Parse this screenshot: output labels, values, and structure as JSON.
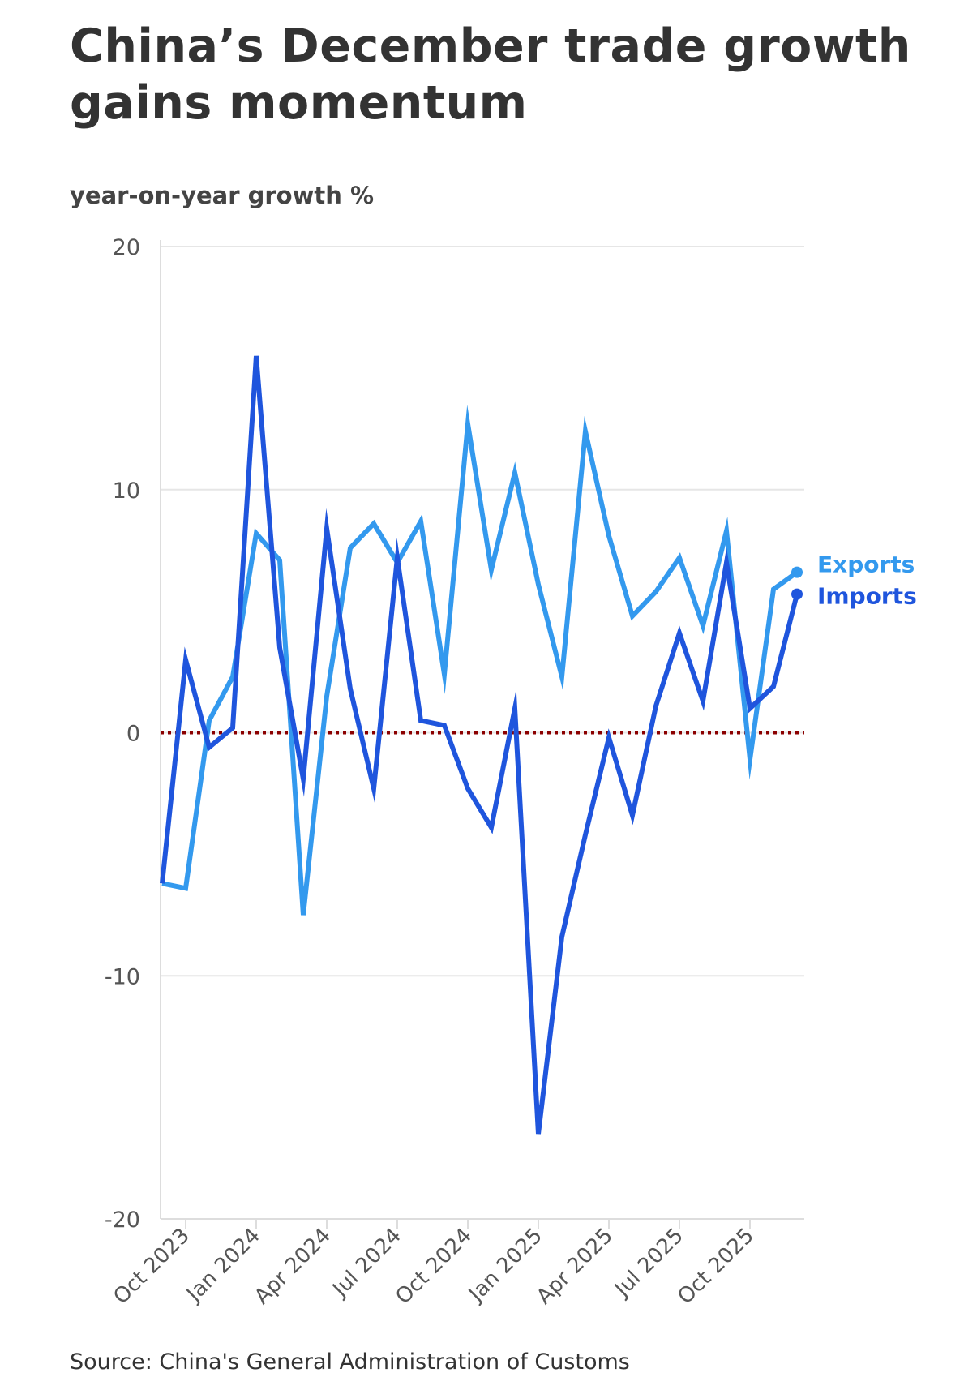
{
  "title": "China’s December trade growth gains momentum",
  "ylabel": "year-on-year growth %",
  "source": "Source: China's General Administration of Customs",
  "colors": {
    "exports": "#3399ee",
    "imports": "#1f55dd",
    "zero_line": "#8b0000",
    "grid": "#e6e6e6",
    "axis": "#dddddd",
    "tick_text": "#555555"
  },
  "chart_data": {
    "type": "line",
    "ylabel": "year-on-year growth %",
    "ylim": [
      -20,
      20
    ],
    "y_ticks": [
      20,
      10,
      0,
      -10,
      -20
    ],
    "x_tick_labels": [
      "Oct 2023",
      "Jan 2024",
      "Apr 2024",
      "Jul 2024",
      "Oct 2024",
      "Jan 2025",
      "Apr 2025",
      "Jul 2025",
      "Oct 2025"
    ],
    "x": [
      "Sep 2023",
      "Oct 2023",
      "Nov 2023",
      "Dec 2023",
      "Jan 2024",
      "Feb 2024",
      "Mar 2024",
      "Apr 2024",
      "May 2024",
      "Jun 2024",
      "Jul 2024",
      "Aug 2024",
      "Sep 2024",
      "Oct 2024",
      "Nov 2024",
      "Dec 2024",
      "Jan 2025",
      "Feb 2025",
      "Mar 2025",
      "Apr 2025",
      "May 2025",
      "Jun 2025",
      "Jul 2025",
      "Aug 2025",
      "Sep 2025",
      "Oct 2025",
      "Nov 2025",
      "Dec 2025"
    ],
    "grid": true,
    "zero_line": "dotted",
    "legend": "inline labels at line ends (right)",
    "series": [
      {
        "name": "Exports",
        "values": [
          -6.2,
          -6.4,
          0.5,
          2.3,
          8.2,
          7.1,
          -7.5,
          1.5,
          7.6,
          8.6,
          7.0,
          8.7,
          2.4,
          12.7,
          6.7,
          10.7,
          6.1,
          2.3,
          12.4,
          8.1,
          4.8,
          5.8,
          7.2,
          4.4,
          8.3,
          -1.1,
          5.9,
          6.6
        ]
      },
      {
        "name": "Imports",
        "values": [
          -6.2,
          3.0,
          -0.6,
          0.2,
          15.5,
          3.5,
          -1.9,
          8.4,
          1.8,
          -2.3,
          7.2,
          0.5,
          0.3,
          -2.3,
          -3.9,
          1.0,
          -16.5,
          -8.4,
          -4.2,
          -0.2,
          -3.4,
          1.1,
          4.1,
          1.3,
          7.0,
          1.0,
          1.9,
          5.7
        ]
      }
    ]
  }
}
